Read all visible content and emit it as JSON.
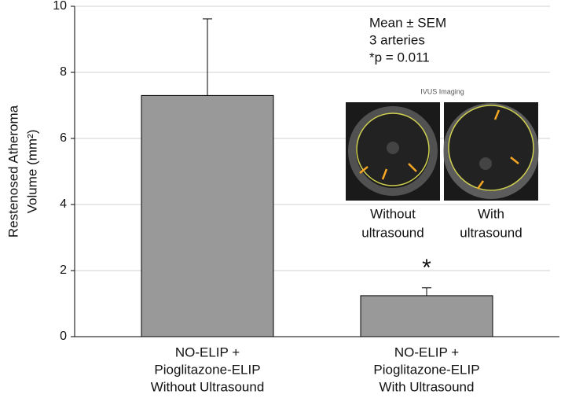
{
  "chart_data": {
    "type": "bar",
    "y_label": [
      "Restenosed Atheroma",
      "Volume (mm²)"
    ],
    "categories": [
      [
        "NO-ELIP +",
        "Pioglitazone-ELIP",
        "Without Ultrasound"
      ],
      [
        "NO-ELIP +",
        "Pioglitazone-ELIP",
        "With Ultrasound"
      ]
    ],
    "values": [
      7.3,
      1.24
    ],
    "errors": [
      2.32,
      0.24
    ],
    "color": "#999999",
    "ylim": [
      0,
      10
    ],
    "yticks": [
      0,
      2,
      4,
      6,
      8,
      10
    ],
    "grid": true,
    "annotations": {
      "legend_note": [
        "Mean ± SEM",
        "3 arteries",
        "*p = 0.011"
      ],
      "significance_marker": "*",
      "inset_title": "IVUS Imaging",
      "inset_labels": [
        [
          "Without",
          "ultrasound"
        ],
        [
          "With",
          "ultrasound"
        ]
      ]
    }
  }
}
